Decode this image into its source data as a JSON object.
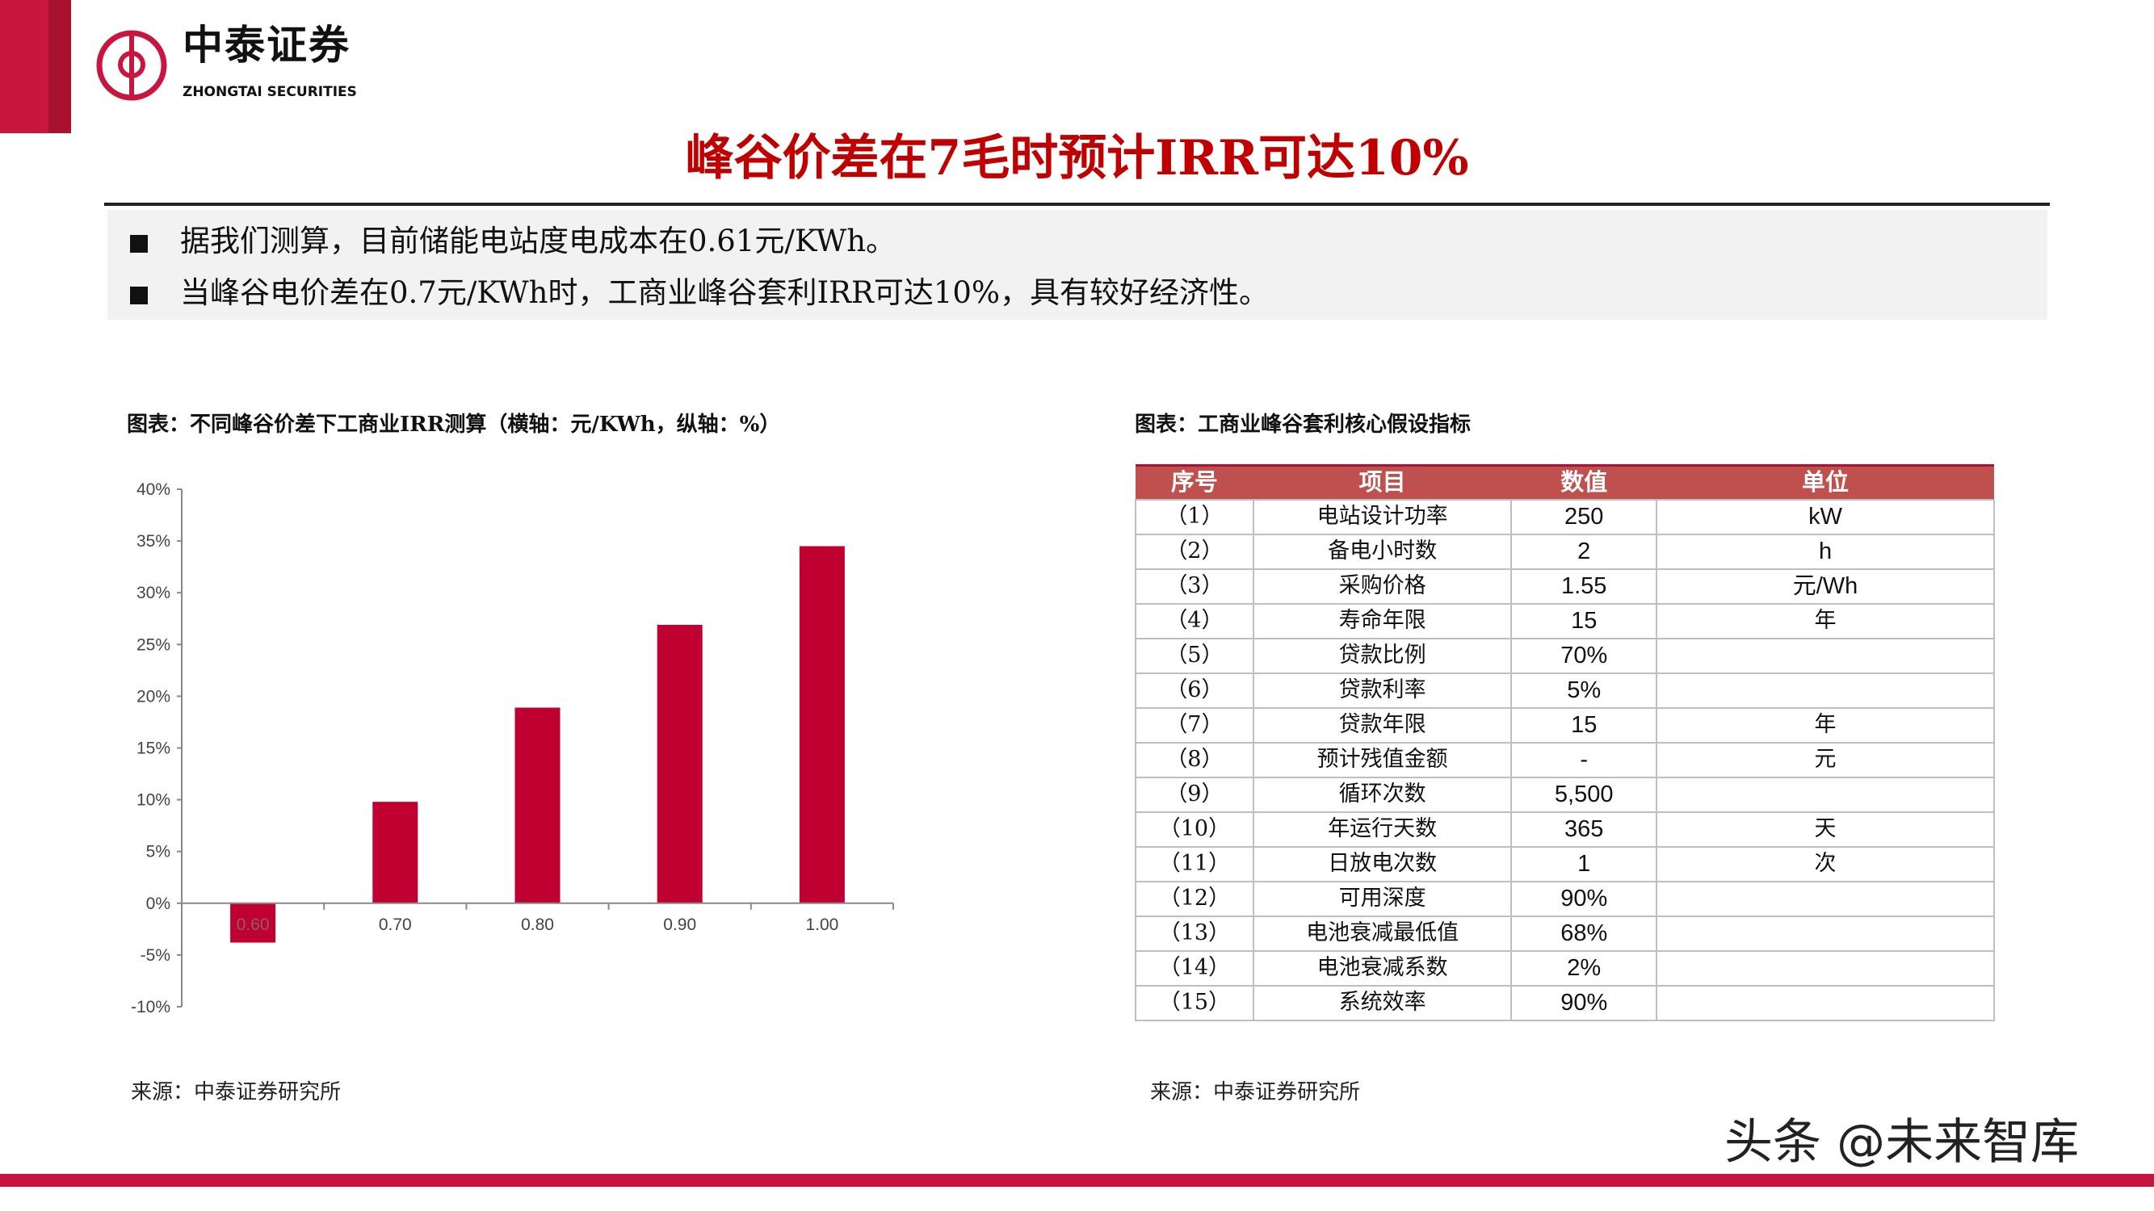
{
  "header": {
    "logo_cn": "中泰证券",
    "logo_en": "ZHONGTAI SECURITIES",
    "title": "峰谷价差在7毛时预计IRR可达10%",
    "brand_color": "#c8163f",
    "title_color": "#c00000"
  },
  "summary": [
    "据我们测算，目前储能电站度电成本在0.61元/KWh。",
    "当峰谷电价差在0.7元/KWh时，工商业峰谷套利IRR可达10%，具有较好经济性。"
  ],
  "left": {
    "caption": "图表：不同峰谷价差下工商业IRR测算（横轴：元/KWh，纵轴：%）",
    "source": "来源：中泰证券研究所"
  },
  "right": {
    "caption": "图表：工商业峰谷套利核心假设指标",
    "source": "来源：中泰证券研究所"
  },
  "chart_data": {
    "type": "bar",
    "categories": [
      "0.60",
      "0.70",
      "0.80",
      "0.90",
      "1.00"
    ],
    "values": [
      -3.8,
      9.8,
      18.9,
      26.9,
      34.5
    ],
    "ylim": [
      -10,
      40
    ],
    "yticks": [
      "40%",
      "35%",
      "30%",
      "25%",
      "20%",
      "15%",
      "10%",
      "5%",
      "0%",
      "-5%",
      "-10%"
    ],
    "ytick_values": [
      40,
      35,
      30,
      25,
      20,
      15,
      10,
      5,
      0,
      -5,
      -10
    ],
    "xlabel": "",
    "ylabel": "",
    "grid": false,
    "bar_color": "#c00030"
  },
  "table": {
    "headers": [
      "序号",
      "项目",
      "数值",
      "单位"
    ],
    "rows": [
      [
        "（1）",
        "电站设计功率",
        "250",
        "kW"
      ],
      [
        "（2）",
        "备电小时数",
        "2",
        "h"
      ],
      [
        "（3）",
        "采购价格",
        "1.55",
        "元/Wh"
      ],
      [
        "（4）",
        "寿命年限",
        "15",
        "年"
      ],
      [
        "（5）",
        "贷款比例",
        "70%",
        ""
      ],
      [
        "（6）",
        "贷款利率",
        "5%",
        ""
      ],
      [
        "（7）",
        "贷款年限",
        "15",
        "年"
      ],
      [
        "（8）",
        "预计残值金额",
        "-",
        "元"
      ],
      [
        "（9）",
        "循环次数",
        "5,500",
        ""
      ],
      [
        "（10）",
        "年运行天数",
        "365",
        "天"
      ],
      [
        "（11）",
        "日放电次数",
        "1",
        "次"
      ],
      [
        "（12）",
        "可用深度",
        "90%",
        ""
      ],
      [
        "（13）",
        "电池衰减最低值",
        "68%",
        ""
      ],
      [
        "（14）",
        "电池衰减系数",
        "2%",
        ""
      ],
      [
        "（15）",
        "系统效率",
        "90%",
        ""
      ]
    ],
    "header_color": "#c0504d"
  },
  "watermark": "头条 @未来智库"
}
